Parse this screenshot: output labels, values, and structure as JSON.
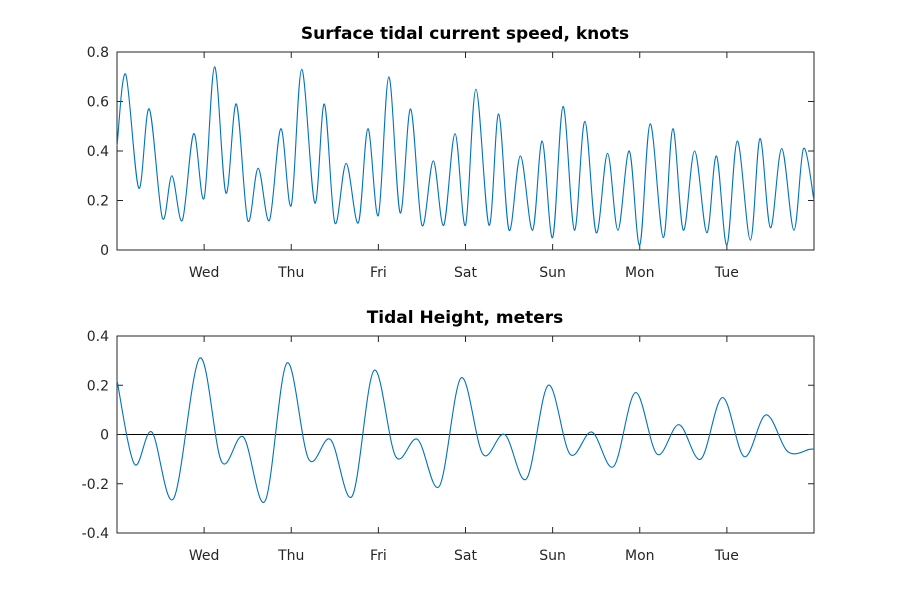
{
  "chart_data": [
    {
      "type": "line",
      "title": "Surface tidal current speed, knots",
      "ylim": [
        0,
        0.8
      ],
      "yticks": [
        "0",
        "0.2",
        "0.4",
        "0.6",
        "0.8"
      ],
      "xlim": [
        0,
        8
      ],
      "xticks": [
        {
          "x": 1,
          "label": "Wed"
        },
        {
          "x": 2,
          "label": "Thu"
        },
        {
          "x": 3,
          "label": "Fri"
        },
        {
          "x": 4,
          "label": "Sat"
        },
        {
          "x": 5,
          "label": "Sun"
        },
        {
          "x": 6,
          "label": "Mon"
        },
        {
          "x": 7,
          "label": "Tue"
        }
      ],
      "grid": false,
      "color": "#0072BD",
      "series": [
        {
          "x": [
            0,
            0.1,
            0.25,
            0.37,
            0.52,
            0.63,
            0.75,
            0.88,
            1.0,
            1.12,
            1.25,
            1.37,
            1.5,
            1.62,
            1.75,
            1.88,
            2.0,
            2.12,
            2.27,
            2.38,
            2.5,
            2.63,
            2.77,
            2.88,
            3.0,
            3.12,
            3.25,
            3.37,
            3.5,
            3.63,
            3.75,
            3.88,
            4.0,
            4.12,
            4.27,
            4.38,
            4.5,
            4.63,
            4.77,
            4.88,
            5.0,
            5.12,
            5.25,
            5.37,
            5.5,
            5.63,
            5.75,
            5.88,
            6.0,
            6.12,
            6.27,
            6.38,
            6.5,
            6.63,
            6.77,
            6.88,
            7.0,
            7.12,
            7.27,
            7.38,
            7.5,
            7.63,
            7.77,
            7.88,
            8.0
          ],
          "values": [
            0.42,
            0.71,
            0.25,
            0.57,
            0.13,
            0.3,
            0.12,
            0.47,
            0.21,
            0.74,
            0.23,
            0.59,
            0.12,
            0.33,
            0.12,
            0.49,
            0.18,
            0.73,
            0.19,
            0.59,
            0.11,
            0.35,
            0.11,
            0.49,
            0.14,
            0.7,
            0.15,
            0.57,
            0.1,
            0.36,
            0.1,
            0.47,
            0.1,
            0.65,
            0.1,
            0.55,
            0.08,
            0.38,
            0.08,
            0.44,
            0.05,
            0.58,
            0.08,
            0.52,
            0.07,
            0.39,
            0.08,
            0.4,
            0.02,
            0.51,
            0.05,
            0.49,
            0.08,
            0.4,
            0.07,
            0.38,
            0.02,
            0.44,
            0.04,
            0.45,
            0.09,
            0.41,
            0.08,
            0.41,
            0.2
          ]
        }
      ]
    },
    {
      "type": "line",
      "title": "Tidal Height, meters",
      "ylim": [
        -0.4,
        0.4
      ],
      "yticks": [
        "-0.4",
        "-0.2",
        "0",
        "0.2",
        "0.4"
      ],
      "xlim": [
        0,
        8
      ],
      "xticks": [
        {
          "x": 1,
          "label": "Wed"
        },
        {
          "x": 2,
          "label": "Thu"
        },
        {
          "x": 3,
          "label": "Fri"
        },
        {
          "x": 4,
          "label": "Sat"
        },
        {
          "x": 5,
          "label": "Sun"
        },
        {
          "x": 6,
          "label": "Mon"
        },
        {
          "x": 7,
          "label": "Tue"
        }
      ],
      "grid": false,
      "zero_line": true,
      "color": "#0072BD",
      "series": [
        {
          "x": [
            0,
            0.2,
            0.4,
            0.65,
            0.95,
            1.2,
            1.45,
            1.7,
            1.95,
            2.2,
            2.45,
            2.7,
            2.95,
            3.2,
            3.45,
            3.7,
            3.95,
            4.2,
            4.45,
            4.7,
            4.95,
            5.2,
            5.45,
            5.7,
            5.95,
            6.2,
            6.45,
            6.7,
            6.95,
            7.2,
            7.45,
            7.7,
            7.95,
            8.0
          ],
          "values": [
            0.22,
            -0.12,
            0.01,
            -0.26,
            0.31,
            -0.11,
            -0.01,
            -0.27,
            0.29,
            -0.1,
            -0.02,
            -0.25,
            0.26,
            -0.09,
            -0.02,
            -0.21,
            0.23,
            -0.08,
            0.0,
            -0.18,
            0.2,
            -0.08,
            0.01,
            -0.13,
            0.17,
            -0.08,
            0.04,
            -0.1,
            0.15,
            -0.09,
            0.08,
            -0.07,
            -0.06,
            -0.06
          ]
        }
      ]
    }
  ]
}
